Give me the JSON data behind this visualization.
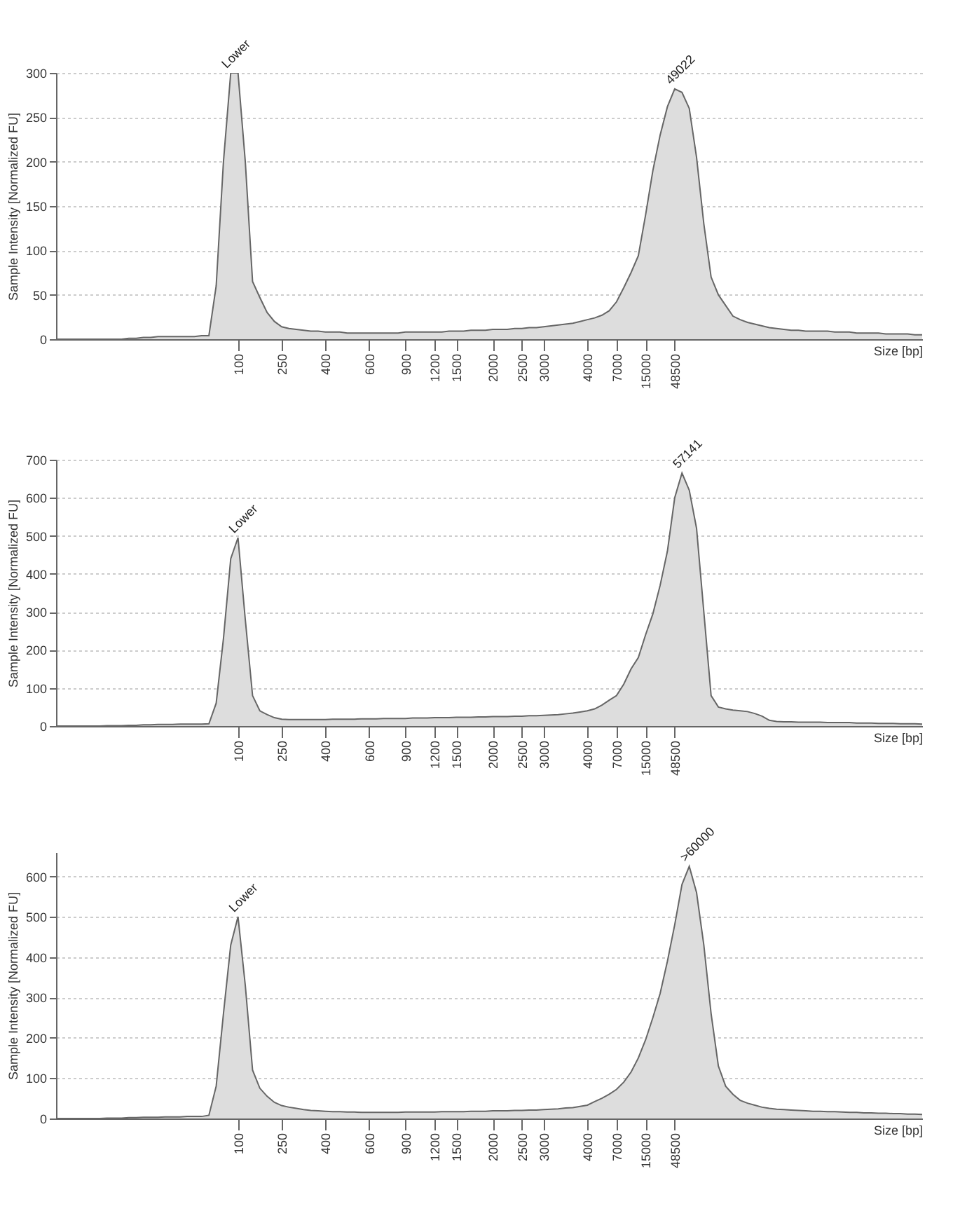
{
  "chart_data": [
    {
      "type": "area",
      "xlabel": "Size [bp]",
      "ylabel": "Sample Intensity [Normalized FU]",
      "color": "#dddddd",
      "grid": "y",
      "ylim": [
        0,
        300
      ],
      "yticks": [
        0,
        50,
        100,
        150,
        200,
        250,
        300
      ],
      "categories": [
        null,
        null,
        null,
        null,
        null,
        null,
        null,
        null,
        null,
        null,
        null,
        null,
        null,
        null,
        null,
        null,
        null,
        null,
        null,
        null,
        null,
        null,
        null,
        null,
        null,
        "100",
        null,
        null,
        null,
        null,
        null,
        "250",
        null,
        null,
        null,
        null,
        null,
        "400",
        null,
        null,
        null,
        null,
        null,
        "600",
        null,
        null,
        null,
        null,
        "900",
        null,
        null,
        null,
        "1200",
        null,
        null,
        "1500",
        null,
        null,
        null,
        null,
        "2000",
        null,
        null,
        null,
        "2500",
        null,
        null,
        "3000",
        null,
        null,
        null,
        null,
        null,
        "4000",
        null,
        null,
        null,
        "7000",
        null,
        null,
        null,
        "15000",
        null,
        null,
        null,
        "48500",
        null,
        null,
        null,
        null,
        null,
        null,
        null,
        null,
        null,
        null,
        null,
        null,
        null,
        null,
        null,
        null,
        null,
        null,
        null,
        null,
        null,
        null,
        null,
        null,
        null,
        null,
        null,
        null,
        null,
        null,
        null,
        null,
        null,
        null
      ],
      "values": [
        0,
        0,
        0,
        0,
        0,
        0,
        0,
        0,
        0,
        0,
        1,
        1,
        2,
        2,
        3,
        3,
        3,
        3,
        3,
        3,
        4,
        4,
        60,
        200,
        300,
        300,
        200,
        65,
        47,
        30,
        20,
        14,
        12,
        11,
        10,
        9,
        9,
        8,
        8,
        8,
        7,
        7,
        7,
        7,
        7,
        7,
        7,
        7,
        8,
        8,
        8,
        8,
        8,
        8,
        9,
        9,
        9,
        10,
        10,
        10,
        11,
        11,
        11,
        12,
        12,
        13,
        13,
        14,
        15,
        16,
        17,
        18,
        20,
        22,
        24,
        27,
        32,
        42,
        58,
        75,
        94,
        140,
        190,
        230,
        262,
        282,
        278,
        260,
        205,
        130,
        70,
        50,
        38,
        26,
        22,
        19,
        17,
        15,
        13,
        12,
        11,
        10,
        10,
        9,
        9,
        9,
        9,
        8,
        8,
        8,
        7,
        7,
        7,
        7,
        6,
        6,
        6,
        6,
        5,
        5
      ],
      "annotations": [
        {
          "text": "Lower",
          "y": 300
        },
        {
          "text": "49022",
          "y": 282
        }
      ]
    },
    {
      "type": "area",
      "xlabel": "Size [bp]",
      "ylabel": "Sample Intensity [Normalized FU]",
      "color": "#dddddd",
      "grid": "y",
      "ylim": [
        0,
        700
      ],
      "yticks": [
        0,
        100,
        200,
        300,
        400,
        500,
        600,
        700
      ],
      "categories": [
        null,
        null,
        null,
        null,
        null,
        null,
        null,
        null,
        null,
        null,
        null,
        null,
        null,
        null,
        null,
        null,
        null,
        null,
        null,
        null,
        null,
        null,
        null,
        null,
        null,
        "100",
        null,
        null,
        null,
        null,
        null,
        "250",
        null,
        null,
        null,
        null,
        null,
        "400",
        null,
        null,
        null,
        null,
        null,
        "600",
        null,
        null,
        null,
        null,
        "900",
        null,
        null,
        null,
        "1200",
        null,
        null,
        "1500",
        null,
        null,
        null,
        null,
        "2000",
        null,
        null,
        null,
        "2500",
        null,
        null,
        "3000",
        null,
        null,
        null,
        null,
        null,
        "4000",
        null,
        null,
        null,
        "7000",
        null,
        null,
        null,
        "15000",
        null,
        null,
        null,
        "48500",
        null,
        null,
        null,
        null,
        null,
        null,
        null,
        null,
        null,
        null,
        null,
        null,
        null,
        null,
        null,
        null,
        null,
        null,
        null,
        null,
        null,
        null,
        null,
        null,
        null,
        null,
        null,
        null,
        null,
        null,
        null,
        null,
        null,
        null
      ],
      "values": [
        0,
        0,
        0,
        0,
        0,
        0,
        0,
        1,
        1,
        1,
        2,
        2,
        3,
        3,
        4,
        4,
        4,
        5,
        5,
        5,
        5,
        6,
        60,
        230,
        440,
        495,
        280,
        80,
        40,
        30,
        22,
        18,
        17,
        17,
        17,
        17,
        17,
        17,
        18,
        18,
        18,
        18,
        19,
        19,
        19,
        20,
        20,
        20,
        20,
        21,
        21,
        21,
        22,
        22,
        22,
        23,
        23,
        23,
        24,
        24,
        25,
        25,
        25,
        26,
        26,
        27,
        27,
        28,
        29,
        30,
        32,
        34,
        37,
        40,
        45,
        55,
        68,
        80,
        110,
        150,
        180,
        240,
        295,
        370,
        460,
        600,
        665,
        620,
        520,
        300,
        80,
        50,
        45,
        42,
        40,
        38,
        33,
        26,
        15,
        12,
        11,
        11,
        10,
        10,
        10,
        10,
        9,
        9,
        9,
        9,
        8,
        8,
        8,
        7,
        7,
        7,
        6,
        6,
        6,
        5
      ],
      "annotations": [
        {
          "text": "Lower",
          "y": 495
        },
        {
          "text": "57141",
          "y": 665
        }
      ]
    },
    {
      "type": "area",
      "xlabel": "Size [bp]",
      "ylabel": "Sample Intensity [Normalized FU]",
      "color": "#dddddd",
      "grid": "y",
      "ylim": [
        0,
        660
      ],
      "yticks": [
        0,
        100,
        200,
        300,
        400,
        500,
        600
      ],
      "categories": [
        null,
        null,
        null,
        null,
        null,
        null,
        null,
        null,
        null,
        null,
        null,
        null,
        null,
        null,
        null,
        null,
        null,
        null,
        null,
        null,
        null,
        null,
        null,
        null,
        null,
        "100",
        null,
        null,
        null,
        null,
        null,
        "250",
        null,
        null,
        null,
        null,
        null,
        "400",
        null,
        null,
        null,
        null,
        null,
        "600",
        null,
        null,
        null,
        null,
        "900",
        null,
        null,
        null,
        "1200",
        null,
        null,
        "1500",
        null,
        null,
        null,
        null,
        "2000",
        null,
        null,
        null,
        "2500",
        null,
        null,
        "3000",
        null,
        null,
        null,
        null,
        null,
        "4000",
        null,
        null,
        null,
        "7000",
        null,
        null,
        null,
        "15000",
        null,
        null,
        null,
        "48500",
        null,
        null,
        null,
        null,
        null,
        null,
        null,
        null,
        null,
        null,
        null,
        null,
        null,
        null,
        null,
        null,
        null,
        null,
        null,
        null,
        null,
        null,
        null,
        null,
        null,
        null,
        null,
        null,
        null,
        null,
        null,
        null,
        null,
        null
      ],
      "values": [
        0,
        0,
        0,
        0,
        0,
        0,
        0,
        1,
        1,
        1,
        2,
        2,
        3,
        3,
        3,
        4,
        4,
        4,
        5,
        5,
        5,
        8,
        80,
        260,
        430,
        500,
        330,
        120,
        75,
        55,
        40,
        32,
        28,
        25,
        22,
        20,
        19,
        18,
        17,
        17,
        16,
        16,
        15,
        15,
        15,
        15,
        15,
        15,
        16,
        16,
        16,
        16,
        16,
        17,
        17,
        17,
        17,
        18,
        18,
        18,
        19,
        19,
        19,
        20,
        20,
        21,
        21,
        22,
        23,
        24,
        26,
        27,
        30,
        33,
        42,
        50,
        60,
        72,
        90,
        115,
        150,
        195,
        250,
        310,
        390,
        480,
        580,
        625,
        560,
        430,
        260,
        130,
        80,
        60,
        45,
        38,
        33,
        28,
        25,
        23,
        22,
        21,
        20,
        19,
        18,
        18,
        17,
        17,
        16,
        15,
        15,
        14,
        14,
        13,
        13,
        12,
        12,
        11,
        11,
        10
      ],
      "annotations": [
        {
          "text": "Lower",
          "y": 500
        },
        {
          "text": ">60000",
          "y": 625
        }
      ]
    }
  ]
}
